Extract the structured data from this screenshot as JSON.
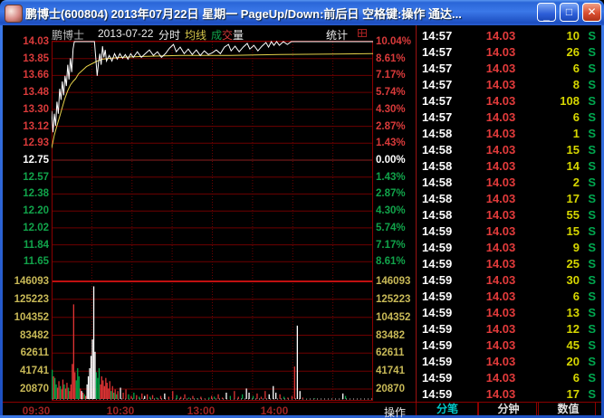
{
  "window": {
    "title": "鹏博士(600804)  2013年07月22日  星期一  PageUp/Down:前后日  空格键:操作  通达...",
    "controls": {
      "minimize": "_",
      "maximize": "□",
      "close": "✕"
    }
  },
  "header": {
    "stock_name": "鹏博士",
    "date": "2013-07-22",
    "period_label": "分时",
    "ma_label": "均线",
    "vol_label_cheng": "成",
    "vol_label_jiao": "交",
    "vol_label_liang": "量",
    "stats_label": "统计"
  },
  "chart_data": {
    "type": "line",
    "title": "鹏博士 2013-07-22 分时",
    "prev_close": 12.75,
    "limit_up_price": 14.03,
    "limit_up_pct": "10.04%",
    "price_range": [
      11.65,
      14.03
    ],
    "left_axis": [
      [
        "14.03",
        "up"
      ],
      [
        "13.85",
        "up"
      ],
      [
        "13.66",
        "up"
      ],
      [
        "13.48",
        "up"
      ],
      [
        "13.30",
        "up"
      ],
      [
        "13.12",
        "up"
      ],
      [
        "12.93",
        "up"
      ],
      [
        "12.75",
        "flat"
      ],
      [
        "12.57",
        "down"
      ],
      [
        "12.38",
        "down"
      ],
      [
        "12.20",
        "down"
      ],
      [
        "12.02",
        "down"
      ],
      [
        "11.84",
        "down"
      ],
      [
        "11.65",
        "down"
      ]
    ],
    "right_axis": [
      [
        "10.04%",
        "up"
      ],
      [
        "8.61%",
        "up"
      ],
      [
        "7.17%",
        "up"
      ],
      [
        "5.74%",
        "up"
      ],
      [
        "4.30%",
        "up"
      ],
      [
        "2.87%",
        "up"
      ],
      [
        "1.43%",
        "up"
      ],
      [
        "0.00%",
        "flat"
      ],
      [
        "1.43%",
        "down"
      ],
      [
        "2.87%",
        "down"
      ],
      [
        "4.30%",
        "down"
      ],
      [
        "5.74%",
        "down"
      ],
      [
        "7.17%",
        "down"
      ],
      [
        "8.61%",
        "down"
      ]
    ],
    "volume_axis": [
      "146093",
      "125223",
      "104352",
      "83482",
      "62611",
      "41741",
      "20870"
    ],
    "volume_max": 146093,
    "x_ticks": [
      "09:30",
      "10:30",
      "13:00",
      "14:00"
    ],
    "x_range_minutes": 240,
    "grid": true,
    "legend_position": "top",
    "series": [
      {
        "name": "price",
        "color": "#ffffff",
        "points": [
          [
            0,
            13.28
          ],
          [
            1,
            13.05
          ],
          [
            2,
            13.25
          ],
          [
            3,
            13.12
          ],
          [
            4,
            13.38
          ],
          [
            5,
            13.25
          ],
          [
            6,
            13.52
          ],
          [
            7,
            13.4
          ],
          [
            8,
            13.6
          ],
          [
            9,
            13.45
          ],
          [
            10,
            13.66
          ],
          [
            11,
            13.55
          ],
          [
            12,
            13.78
          ],
          [
            13,
            13.62
          ],
          [
            14,
            13.85
          ],
          [
            15,
            13.7
          ],
          [
            16,
            13.95
          ],
          [
            17,
            14.03
          ],
          [
            32,
            14.03
          ],
          [
            33,
            13.85
          ],
          [
            34,
            13.66
          ],
          [
            35,
            13.8
          ],
          [
            36,
            13.9
          ],
          [
            37,
            13.78
          ],
          [
            38,
            13.98
          ],
          [
            39,
            13.86
          ],
          [
            40,
            13.94
          ],
          [
            41,
            13.82
          ],
          [
            43,
            13.88
          ],
          [
            45,
            13.82
          ],
          [
            47,
            13.9
          ],
          [
            49,
            13.84
          ],
          [
            51,
            13.9
          ],
          [
            53,
            13.85
          ],
          [
            55,
            13.89
          ],
          [
            57,
            13.84
          ],
          [
            59,
            13.9
          ],
          [
            61,
            13.86
          ],
          [
            64,
            13.92
          ],
          [
            67,
            13.86
          ],
          [
            70,
            13.9
          ],
          [
            73,
            13.94
          ],
          [
            76,
            13.88
          ],
          [
            79,
            13.92
          ],
          [
            82,
            13.86
          ],
          [
            85,
            13.9
          ],
          [
            88,
            13.96
          ],
          [
            91,
            14.0
          ],
          [
            93,
            13.92
          ],
          [
            96,
            13.97
          ],
          [
            99,
            13.9
          ],
          [
            102,
            13.95
          ],
          [
            105,
            13.89
          ],
          [
            108,
            13.94
          ],
          [
            111,
            13.88
          ],
          [
            114,
            13.93
          ],
          [
            117,
            13.89
          ],
          [
            120,
            13.91
          ],
          [
            123,
            13.94
          ],
          [
            126,
            13.9
          ],
          [
            129,
            13.97
          ],
          [
            132,
            14.0
          ],
          [
            134,
            13.93
          ],
          [
            137,
            13.98
          ],
          [
            140,
            13.92
          ],
          [
            143,
            13.97
          ],
          [
            146,
            14.01
          ],
          [
            148,
            13.95
          ],
          [
            151,
            13.99
          ],
          [
            154,
            13.93
          ],
          [
            157,
            13.98
          ],
          [
            160,
            14.02
          ],
          [
            162,
            13.97
          ],
          [
            164,
            14.03
          ],
          [
            166,
            13.99
          ],
          [
            168,
            14.03
          ],
          [
            170,
            13.99
          ],
          [
            173,
            14.03
          ],
          [
            176,
            14.0
          ],
          [
            179,
            14.03
          ],
          [
            240,
            14.03
          ]
        ]
      },
      {
        "name": "均线",
        "color": "#e6d24a",
        "points": [
          [
            0,
            12.88
          ],
          [
            2,
            13.02
          ],
          [
            4,
            13.12
          ],
          [
            6,
            13.22
          ],
          [
            8,
            13.32
          ],
          [
            10,
            13.42
          ],
          [
            12,
            13.5
          ],
          [
            14,
            13.56
          ],
          [
            16,
            13.6
          ],
          [
            18,
            13.63
          ],
          [
            20,
            13.68
          ],
          [
            23,
            13.72
          ],
          [
            26,
            13.76
          ],
          [
            30,
            13.79
          ],
          [
            34,
            13.82
          ],
          [
            38,
            13.84
          ],
          [
            44,
            13.85
          ],
          [
            52,
            13.86
          ],
          [
            68,
            13.87
          ],
          [
            96,
            13.88
          ],
          [
            130,
            13.88
          ],
          [
            170,
            13.89
          ],
          [
            240,
            13.9
          ]
        ]
      }
    ],
    "volume_bars": [
      [
        0,
        38000,
        "g"
      ],
      [
        1,
        30000,
        "r"
      ],
      [
        2,
        28000,
        "g"
      ],
      [
        3,
        20000,
        "g"
      ],
      [
        4,
        16000,
        "r"
      ],
      [
        5,
        24000,
        "r"
      ],
      [
        6,
        18000,
        "g"
      ],
      [
        7,
        14000,
        "r"
      ],
      [
        8,
        26000,
        "r"
      ],
      [
        9,
        20000,
        "g"
      ],
      [
        10,
        15000,
        "r"
      ],
      [
        11,
        22000,
        "r"
      ],
      [
        12,
        16000,
        "g"
      ],
      [
        13,
        12000,
        "r"
      ],
      [
        14,
        20000,
        "r"
      ],
      [
        15,
        45000,
        "r"
      ],
      [
        16,
        118000,
        "r"
      ],
      [
        17,
        35000,
        "r"
      ],
      [
        18,
        25000,
        "g"
      ],
      [
        19,
        40000,
        "g"
      ],
      [
        20,
        30000,
        "g"
      ],
      [
        21,
        15000,
        "r"
      ],
      [
        22,
        12000,
        "w"
      ],
      [
        23,
        10000,
        "r"
      ],
      [
        24,
        8000,
        "g"
      ],
      [
        25,
        6000,
        "r"
      ],
      [
        26,
        20000,
        "w"
      ],
      [
        27,
        30000,
        "w"
      ],
      [
        28,
        40000,
        "w"
      ],
      [
        29,
        55000,
        "w"
      ],
      [
        30,
        75000,
        "w"
      ],
      [
        31,
        140000,
        "w"
      ],
      [
        32,
        60000,
        "w"
      ],
      [
        33,
        35000,
        "g"
      ],
      [
        34,
        28000,
        "g"
      ],
      [
        35,
        40000,
        "g"
      ],
      [
        36,
        20000,
        "r"
      ],
      [
        37,
        30000,
        "r"
      ],
      [
        38,
        25000,
        "r"
      ],
      [
        39,
        18000,
        "r"
      ],
      [
        40,
        28000,
        "r"
      ],
      [
        41,
        22000,
        "r"
      ],
      [
        42,
        15000,
        "r"
      ],
      [
        43,
        24000,
        "r"
      ],
      [
        44,
        12000,
        "g"
      ],
      [
        45,
        18000,
        "r"
      ],
      [
        46,
        10000,
        "g"
      ],
      [
        47,
        14000,
        "r"
      ],
      [
        48,
        8000,
        "g"
      ],
      [
        49,
        12000,
        "r"
      ],
      [
        51,
        16000,
        "w"
      ],
      [
        53,
        10000,
        "r"
      ],
      [
        55,
        14000,
        "r"
      ],
      [
        57,
        8000,
        "g"
      ],
      [
        59,
        6000,
        "r"
      ],
      [
        61,
        10000,
        "g"
      ],
      [
        63,
        7000,
        "r"
      ],
      [
        65,
        5000,
        "g"
      ],
      [
        67,
        9000,
        "r"
      ],
      [
        69,
        6000,
        "w"
      ],
      [
        71,
        8000,
        "r"
      ],
      [
        73,
        5000,
        "g"
      ],
      [
        75,
        7000,
        "r"
      ],
      [
        78,
        4000,
        "g"
      ],
      [
        81,
        6000,
        "r"
      ],
      [
        84,
        9000,
        "w"
      ],
      [
        87,
        5000,
        "r"
      ],
      [
        90,
        12000,
        "r"
      ],
      [
        93,
        7000,
        "g"
      ],
      [
        96,
        5000,
        "r"
      ],
      [
        99,
        8000,
        "r"
      ],
      [
        102,
        4000,
        "g"
      ],
      [
        105,
        6000,
        "r"
      ],
      [
        108,
        3000,
        "g"
      ],
      [
        111,
        5000,
        "r"
      ],
      [
        114,
        3000,
        "r"
      ],
      [
        117,
        4000,
        "g"
      ],
      [
        119,
        6000,
        "r"
      ],
      [
        121,
        5000,
        "g"
      ],
      [
        124,
        8000,
        "r"
      ],
      [
        127,
        4000,
        "r"
      ],
      [
        130,
        10000,
        "w"
      ],
      [
        133,
        6000,
        "g"
      ],
      [
        136,
        12000,
        "r"
      ],
      [
        139,
        5000,
        "r"
      ],
      [
        142,
        8000,
        "g"
      ],
      [
        145,
        15000,
        "w"
      ],
      [
        147,
        10000,
        "w"
      ],
      [
        150,
        6000,
        "g"
      ],
      [
        153,
        9000,
        "r"
      ],
      [
        156,
        5000,
        "r"
      ],
      [
        159,
        12000,
        "r"
      ],
      [
        162,
        8000,
        "w"
      ],
      [
        165,
        18000,
        "w"
      ],
      [
        167,
        10000,
        "w"
      ],
      [
        170,
        8000,
        "r"
      ],
      [
        173,
        5000,
        "g"
      ],
      [
        176,
        4000,
        "r"
      ],
      [
        179,
        6000,
        "r"
      ],
      [
        181,
        42000,
        "r"
      ],
      [
        183,
        92000,
        "w"
      ],
      [
        185,
        12000,
        "w"
      ],
      [
        187,
        4000,
        "r"
      ],
      [
        190,
        2500,
        "g"
      ],
      [
        193,
        2000,
        "r"
      ],
      [
        196,
        3000,
        "g"
      ],
      [
        200,
        2000,
        "r"
      ],
      [
        204,
        1500,
        "g"
      ],
      [
        208,
        2000,
        "r"
      ],
      [
        212,
        1500,
        "r"
      ],
      [
        216,
        2500,
        "g"
      ],
      [
        217,
        9000,
        "w"
      ],
      [
        219,
        6000,
        "g"
      ],
      [
        222,
        2000,
        "r"
      ],
      [
        226,
        1500,
        "r"
      ],
      [
        230,
        2000,
        "g"
      ],
      [
        234,
        1500,
        "r"
      ],
      [
        238,
        2000,
        "r"
      ]
    ],
    "colors": {
      "up": "#d93a3a",
      "down": "#11a34a",
      "flat": "#ffffff",
      "vol_axis": "#c8b957",
      "grid": "#6e0000",
      "grid_bright": "#c01010",
      "border": "#8a0000",
      "bar_r": "#e03434",
      "bar_g": "#00a545",
      "bar_w": "#ffffff",
      "time_label": "#9e2222"
    }
  },
  "tick_panel": {
    "rows": [
      [
        "14:57",
        "14.03",
        "10",
        "S"
      ],
      [
        "14:57",
        "14.03",
        "26",
        "S"
      ],
      [
        "14:57",
        "14.03",
        "6",
        "S"
      ],
      [
        "14:57",
        "14.03",
        "8",
        "S"
      ],
      [
        "14:57",
        "14.03",
        "108",
        "S"
      ],
      [
        "14:57",
        "14.03",
        "6",
        "S"
      ],
      [
        "14:58",
        "14.03",
        "1",
        "S"
      ],
      [
        "14:58",
        "14.03",
        "15",
        "S"
      ],
      [
        "14:58",
        "14.03",
        "14",
        "S"
      ],
      [
        "14:58",
        "14.03",
        "2",
        "S"
      ],
      [
        "14:58",
        "14.03",
        "17",
        "S"
      ],
      [
        "14:58",
        "14.03",
        "55",
        "S"
      ],
      [
        "14:59",
        "14.03",
        "15",
        "S"
      ],
      [
        "14:59",
        "14.03",
        "9",
        "S"
      ],
      [
        "14:59",
        "14.03",
        "25",
        "S"
      ],
      [
        "14:59",
        "14.03",
        "30",
        "S"
      ],
      [
        "14:59",
        "14.03",
        "6",
        "S"
      ],
      [
        "14:59",
        "14.03",
        "13",
        "S"
      ],
      [
        "14:59",
        "14.03",
        "12",
        "S"
      ],
      [
        "14:59",
        "14.03",
        "45",
        "S"
      ],
      [
        "14:59",
        "14.03",
        "20",
        "S"
      ],
      [
        "14:59",
        "14.03",
        "6",
        "S"
      ],
      [
        "14:59",
        "14.03",
        "17",
        "S"
      ]
    ],
    "footer_tabs": [
      "分笔",
      "分钟",
      "数值"
    ]
  },
  "bottom_bar": {
    "action_label": "操作"
  }
}
